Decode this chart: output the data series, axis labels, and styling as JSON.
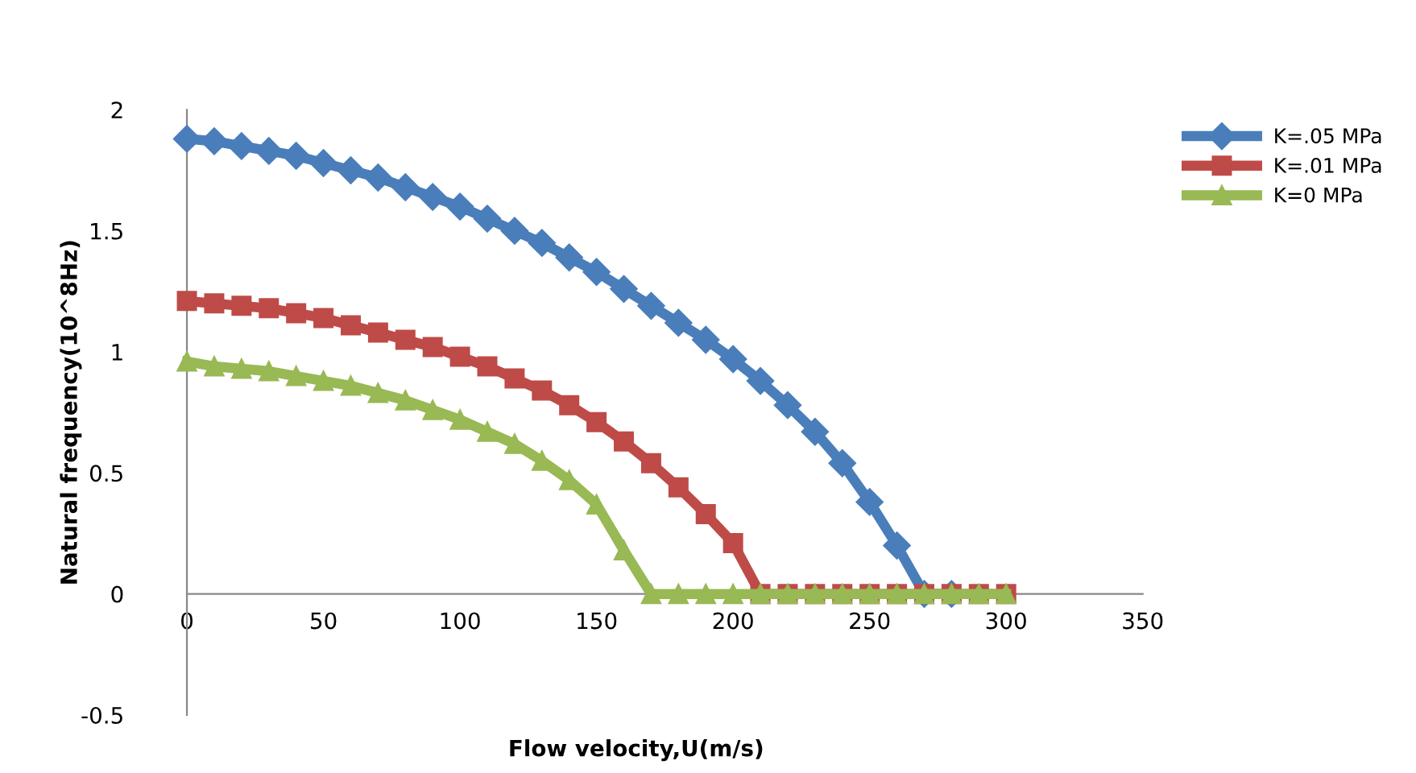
{
  "chart_data": {
    "type": "line",
    "xlabel": "Flow velocity,U(m/s)",
    "ylabel": "Natural frequency(10^8Hz)",
    "x": [
      0,
      10,
      20,
      30,
      40,
      50,
      60,
      70,
      80,
      90,
      100,
      110,
      120,
      130,
      140,
      150,
      160,
      170,
      180,
      190,
      200,
      210,
      220,
      230,
      240,
      250,
      260,
      270,
      280,
      290,
      300
    ],
    "series": [
      {
        "name": "K=.05 MPa",
        "color": "#4a7ebb",
        "marker": "diamond",
        "values": [
          1.88,
          1.87,
          1.85,
          1.83,
          1.81,
          1.78,
          1.75,
          1.72,
          1.68,
          1.64,
          1.6,
          1.55,
          1.5,
          1.45,
          1.39,
          1.33,
          1.26,
          1.19,
          1.12,
          1.05,
          0.97,
          0.88,
          0.78,
          0.67,
          0.54,
          0.38,
          0.2,
          0,
          0,
          null,
          null
        ]
      },
      {
        "name": "K=.01 MPa",
        "color": "#be4b48",
        "marker": "square",
        "values": [
          1.21,
          1.2,
          1.19,
          1.18,
          1.16,
          1.14,
          1.11,
          1.08,
          1.05,
          1.02,
          0.98,
          0.94,
          0.89,
          0.84,
          0.78,
          0.71,
          0.63,
          0.54,
          0.44,
          0.33,
          0.21,
          0,
          0,
          0,
          0,
          0,
          0,
          0,
          0,
          0,
          0
        ]
      },
      {
        "name": "K=0 MPa",
        "color": "#98b954",
        "marker": "triangle",
        "values": [
          0.96,
          0.94,
          0.93,
          0.92,
          0.9,
          0.88,
          0.86,
          0.83,
          0.8,
          0.76,
          0.72,
          0.67,
          0.62,
          0.55,
          0.47,
          0.37,
          0.18,
          0,
          0,
          0,
          0,
          0,
          0,
          0,
          0,
          0,
          0,
          0,
          0,
          0,
          0
        ]
      }
    ],
    "xlim": [
      0,
      350
    ],
    "xticks": [
      0,
      50,
      100,
      150,
      200,
      250,
      300,
      350
    ],
    "ylim": [
      -0.5,
      2
    ],
    "yticks": [
      -0.5,
      0,
      0.5,
      1,
      1.5,
      2
    ],
    "grid": false,
    "legend": "top right",
    "line_style": "solid"
  }
}
